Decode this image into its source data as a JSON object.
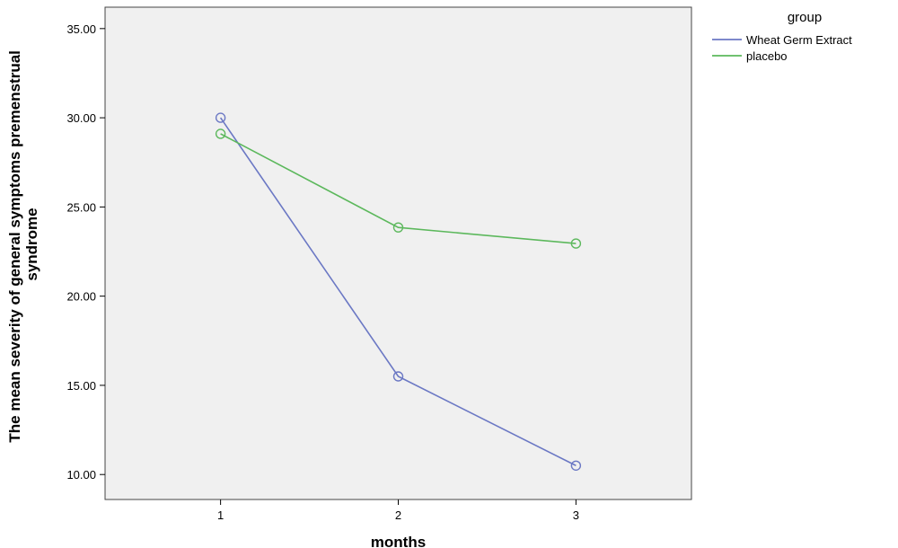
{
  "chart_data": {
    "type": "line",
    "xlabel": "months",
    "ylabel": [
      "The mean severity of general symptoms premenstrual",
      "syndrome"
    ],
    "x": [
      1,
      2,
      3
    ],
    "x_tick_labels": [
      "1",
      "2",
      "3"
    ],
    "xlim": [
      0.35,
      3.65
    ],
    "ylim": [
      8.6,
      36.2
    ],
    "y_ticks": [
      10,
      15,
      20,
      25,
      30,
      35
    ],
    "y_tick_labels": [
      "10.00",
      "15.00",
      "20.00",
      "25.00",
      "30.00",
      "35.00"
    ],
    "grid": false,
    "legend": {
      "title": "group",
      "position": "outside-right"
    },
    "series": [
      {
        "name": "Wheat Germ Extract",
        "values": [
          30.0,
          15.5,
          10.5
        ],
        "color": "#6b78c4"
      },
      {
        "name": "placebo",
        "values": [
          29.1,
          23.85,
          22.95
        ],
        "color": "#5cb85c"
      }
    ],
    "plot_background": "#f0f0f0"
  }
}
